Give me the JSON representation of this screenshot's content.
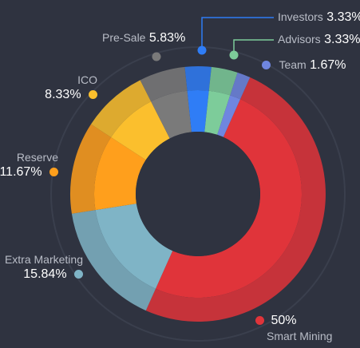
{
  "chart_data": {
    "type": "pie",
    "variant": "donut",
    "title": "",
    "slices": [
      {
        "name": "Smart Mining",
        "label": "50%",
        "value": 50,
        "color": "#e0343a"
      },
      {
        "name": "Extra Marketing",
        "label": "15.84%",
        "value": 15.84,
        "color": "#7fb4c6"
      },
      {
        "name": "Reserve",
        "label": "11.67%",
        "value": 11.67,
        "color": "#ff9f1c"
      },
      {
        "name": "ICO",
        "label": "8.33%",
        "value": 8.33,
        "color": "#fbbf2d"
      },
      {
        "name": "Pre-Sale",
        "label": "5.83%",
        "value": 5.83,
        "color": "#7a7a7a"
      },
      {
        "name": "Investors",
        "label": "3.33%",
        "value": 3.33,
        "color": "#2f7df6"
      },
      {
        "name": "Advisors",
        "label": "3.33%",
        "value": 3.33,
        "color": "#7dcc9a"
      },
      {
        "name": "Team",
        "label": "1.67%",
        "value": 1.67,
        "color": "#6f86e0"
      }
    ],
    "legend": "callouts around the ring"
  }
}
